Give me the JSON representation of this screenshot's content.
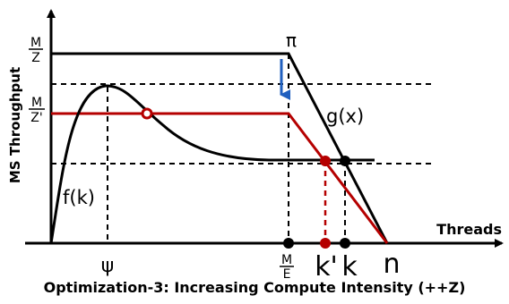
{
  "axes": {
    "y_label": "MS Throughput",
    "x_label": "Threads"
  },
  "y_marks": {
    "upper": {
      "numerator": "M",
      "denominator": "Z"
    },
    "lower": {
      "numerator": "M",
      "denominator": "Z'"
    }
  },
  "x_marks": {
    "psi": "ψ",
    "m_over_e": {
      "numerator": "M",
      "denominator": "E"
    },
    "k_prime": "k'",
    "k": "k",
    "n": "n"
  },
  "curve_labels": {
    "pi": "π",
    "g": "g(x)",
    "f": "f(k)"
  },
  "caption": "Optimization-3: Increasing Compute Intensity (++Z)",
  "colors": {
    "black": "#000000",
    "red": "#b50000",
    "arrow_blue": "#1f5fbf"
  }
}
